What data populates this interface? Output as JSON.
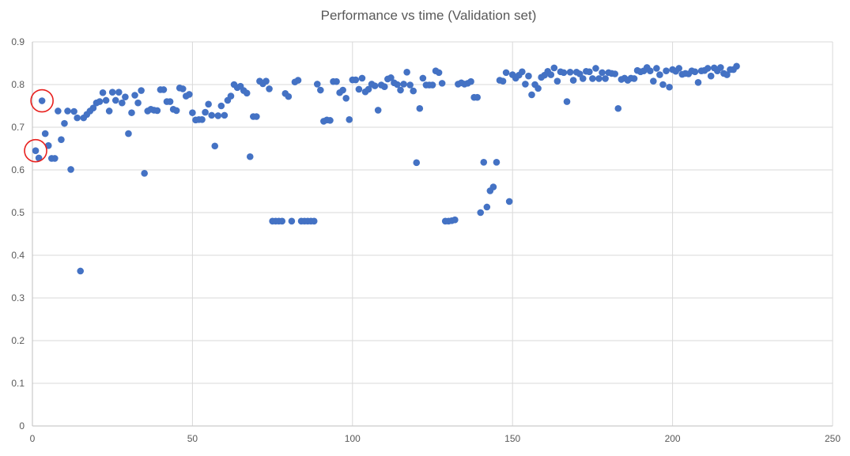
{
  "chart_data": {
    "type": "scatter",
    "title": "Performance vs time (Validation set)",
    "xlabel": "",
    "ylabel": "",
    "xlim": [
      0,
      250
    ],
    "ylim": [
      0,
      0.9
    ],
    "x_ticks": [
      0,
      50,
      100,
      150,
      200,
      250
    ],
    "y_ticks": [
      0,
      0.1,
      0.2,
      0.3,
      0.4,
      0.5,
      0.6,
      0.7,
      0.8,
      0.9
    ],
    "grid": true,
    "legend": "none",
    "colors": {
      "marker": "#4472c4",
      "grid": "#d9d9d9",
      "annotation": "#e8201e",
      "text": "#595959"
    },
    "annotations": [
      {
        "shape": "circle",
        "x": 1,
        "y": 0.645,
        "color": "#e8201e"
      },
      {
        "shape": "circle",
        "x": 3,
        "y": 0.762,
        "color": "#e8201e"
      }
    ],
    "series": [
      {
        "points": [
          [
            1,
            0.645
          ],
          [
            2,
            0.628
          ],
          [
            3,
            0.762
          ],
          [
            4,
            0.685
          ],
          [
            5,
            0.657
          ],
          [
            6,
            0.627
          ],
          [
            7,
            0.627
          ],
          [
            8,
            0.738
          ],
          [
            9,
            0.671
          ],
          [
            10,
            0.709
          ],
          [
            11,
            0.738
          ],
          [
            12,
            0.601
          ],
          [
            13,
            0.737
          ],
          [
            14,
            0.722
          ],
          [
            15,
            0.363
          ],
          [
            16,
            0.722
          ],
          [
            17,
            0.73
          ],
          [
            18,
            0.738
          ],
          [
            19,
            0.745
          ],
          [
            20,
            0.757
          ],
          [
            21,
            0.76
          ],
          [
            22,
            0.781
          ],
          [
            23,
            0.763
          ],
          [
            24,
            0.738
          ],
          [
            25,
            0.782
          ],
          [
            26,
            0.763
          ],
          [
            27,
            0.782
          ],
          [
            28,
            0.757
          ],
          [
            29,
            0.771
          ],
          [
            30,
            0.685
          ],
          [
            31,
            0.734
          ],
          [
            32,
            0.775
          ],
          [
            33,
            0.757
          ],
          [
            34,
            0.786
          ],
          [
            35,
            0.592
          ],
          [
            36,
            0.738
          ],
          [
            37,
            0.742
          ],
          [
            38,
            0.74
          ],
          [
            39,
            0.739
          ],
          [
            40,
            0.788
          ],
          [
            41,
            0.788
          ],
          [
            42,
            0.76
          ],
          [
            43,
            0.76
          ],
          [
            44,
            0.742
          ],
          [
            45,
            0.739
          ],
          [
            46,
            0.792
          ],
          [
            47,
            0.79
          ],
          [
            48,
            0.773
          ],
          [
            49,
            0.777
          ],
          [
            50,
            0.734
          ],
          [
            51,
            0.717
          ],
          [
            52,
            0.718
          ],
          [
            53,
            0.718
          ],
          [
            54,
            0.735
          ],
          [
            55,
            0.754
          ],
          [
            56,
            0.728
          ],
          [
            57,
            0.656
          ],
          [
            58,
            0.727
          ],
          [
            59,
            0.75
          ],
          [
            60,
            0.728
          ],
          [
            61,
            0.763
          ],
          [
            62,
            0.773
          ],
          [
            63,
            0.8
          ],
          [
            64,
            0.793
          ],
          [
            65,
            0.796
          ],
          [
            66,
            0.786
          ],
          [
            67,
            0.78
          ],
          [
            68,
            0.631
          ],
          [
            69,
            0.725
          ],
          [
            70,
            0.725
          ],
          [
            71,
            0.808
          ],
          [
            72,
            0.802
          ],
          [
            73,
            0.808
          ],
          [
            74,
            0.79
          ],
          [
            75,
            0.48
          ],
          [
            76,
            0.48
          ],
          [
            77,
            0.48
          ],
          [
            78,
            0.48
          ],
          [
            79,
            0.779
          ],
          [
            80,
            0.772
          ],
          [
            81,
            0.48
          ],
          [
            82,
            0.806
          ],
          [
            83,
            0.81
          ],
          [
            84,
            0.48
          ],
          [
            85,
            0.48
          ],
          [
            86,
            0.48
          ],
          [
            87,
            0.48
          ],
          [
            88,
            0.48
          ],
          [
            89,
            0.801
          ],
          [
            90,
            0.787
          ],
          [
            91,
            0.714
          ],
          [
            92,
            0.717
          ],
          [
            93,
            0.716
          ],
          [
            94,
            0.807
          ],
          [
            95,
            0.807
          ],
          [
            96,
            0.781
          ],
          [
            97,
            0.787
          ],
          [
            98,
            0.768
          ],
          [
            99,
            0.718
          ],
          [
            100,
            0.811
          ],
          [
            101,
            0.811
          ],
          [
            102,
            0.789
          ],
          [
            103,
            0.815
          ],
          [
            104,
            0.783
          ],
          [
            105,
            0.789
          ],
          [
            106,
            0.801
          ],
          [
            107,
            0.797
          ],
          [
            108,
            0.74
          ],
          [
            109,
            0.799
          ],
          [
            110,
            0.795
          ],
          [
            111,
            0.813
          ],
          [
            112,
            0.816
          ],
          [
            113,
            0.804
          ],
          [
            114,
            0.8
          ],
          [
            115,
            0.787
          ],
          [
            116,
            0.801
          ],
          [
            117,
            0.829
          ],
          [
            118,
            0.799
          ],
          [
            119,
            0.785
          ],
          [
            120,
            0.617
          ],
          [
            121,
            0.744
          ],
          [
            122,
            0.815
          ],
          [
            123,
            0.799
          ],
          [
            124,
            0.799
          ],
          [
            125,
            0.799
          ],
          [
            126,
            0.832
          ],
          [
            127,
            0.828
          ],
          [
            128,
            0.803
          ],
          [
            129,
            0.48
          ],
          [
            130,
            0.48
          ],
          [
            131,
            0.481
          ],
          [
            132,
            0.483
          ],
          [
            133,
            0.801
          ],
          [
            134,
            0.804
          ],
          [
            135,
            0.801
          ],
          [
            136,
            0.803
          ],
          [
            137,
            0.807
          ],
          [
            138,
            0.77
          ],
          [
            139,
            0.77
          ],
          [
            140,
            0.5
          ],
          [
            141,
            0.618
          ],
          [
            142,
            0.513
          ],
          [
            143,
            0.551
          ],
          [
            144,
            0.56
          ],
          [
            145,
            0.618
          ],
          [
            146,
            0.81
          ],
          [
            147,
            0.808
          ],
          [
            148,
            0.828
          ],
          [
            149,
            0.526
          ],
          [
            150,
            0.823
          ],
          [
            151,
            0.815
          ],
          [
            152,
            0.822
          ],
          [
            153,
            0.83
          ],
          [
            154,
            0.801
          ],
          [
            155,
            0.82
          ],
          [
            156,
            0.776
          ],
          [
            157,
            0.8
          ],
          [
            158,
            0.791
          ],
          [
            159,
            0.817
          ],
          [
            160,
            0.822
          ],
          [
            161,
            0.831
          ],
          [
            162,
            0.823
          ],
          [
            163,
            0.839
          ],
          [
            164,
            0.808
          ],
          [
            165,
            0.83
          ],
          [
            166,
            0.828
          ],
          [
            167,
            0.76
          ],
          [
            168,
            0.829
          ],
          [
            169,
            0.81
          ],
          [
            170,
            0.829
          ],
          [
            171,
            0.825
          ],
          [
            172,
            0.814
          ],
          [
            173,
            0.831
          ],
          [
            174,
            0.83
          ],
          [
            175,
            0.814
          ],
          [
            176,
            0.838
          ],
          [
            177,
            0.814
          ],
          [
            178,
            0.828
          ],
          [
            179,
            0.814
          ],
          [
            180,
            0.828
          ],
          [
            181,
            0.826
          ],
          [
            182,
            0.825
          ],
          [
            183,
            0.744
          ],
          [
            184,
            0.812
          ],
          [
            185,
            0.815
          ],
          [
            186,
            0.81
          ],
          [
            187,
            0.815
          ],
          [
            188,
            0.814
          ],
          [
            189,
            0.833
          ],
          [
            190,
            0.83
          ],
          [
            191,
            0.832
          ],
          [
            192,
            0.84
          ],
          [
            193,
            0.832
          ],
          [
            194,
            0.808
          ],
          [
            195,
            0.838
          ],
          [
            196,
            0.823
          ],
          [
            197,
            0.8
          ],
          [
            198,
            0.832
          ],
          [
            199,
            0.794
          ],
          [
            200,
            0.835
          ],
          [
            201,
            0.831
          ],
          [
            202,
            0.838
          ],
          [
            203,
            0.824
          ],
          [
            204,
            0.826
          ],
          [
            205,
            0.825
          ],
          [
            206,
            0.832
          ],
          [
            207,
            0.83
          ],
          [
            208,
            0.805
          ],
          [
            209,
            0.832
          ],
          [
            210,
            0.833
          ],
          [
            211,
            0.838
          ],
          [
            212,
            0.82
          ],
          [
            213,
            0.839
          ],
          [
            214,
            0.832
          ],
          [
            215,
            0.84
          ],
          [
            216,
            0.826
          ],
          [
            217,
            0.823
          ],
          [
            218,
            0.835
          ],
          [
            219,
            0.835
          ],
          [
            220,
            0.843
          ]
        ]
      }
    ]
  }
}
